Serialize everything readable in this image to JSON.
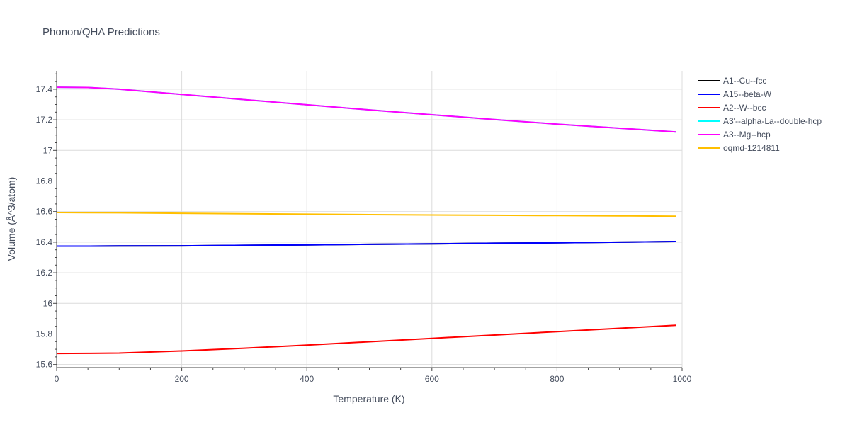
{
  "chart_data": {
    "type": "line",
    "title": "Phonon/QHA Predictions",
    "xlabel": "Temperature (K)",
    "ylabel": "Volume (Å^3/atom)",
    "xlim": [
      0,
      1000
    ],
    "ylim": [
      15.58,
      17.52
    ],
    "xticks": [
      0,
      200,
      400,
      600,
      800,
      1000
    ],
    "xtick_labels": [
      "0",
      "200",
      "400",
      "600",
      "800",
      "1000"
    ],
    "yticks": [
      15.6,
      15.8,
      16.0,
      16.2,
      16.4,
      16.6,
      16.8,
      17.0,
      17.2,
      17.4
    ],
    "ytick_labels": [
      "15.6",
      "15.8",
      "16",
      "16.2",
      "16.4",
      "16.6",
      "16.8",
      "17",
      "17.2",
      "17.4"
    ],
    "grid": true,
    "legend_position": "right",
    "series": [
      {
        "name": "A1--Cu--fcc",
        "color": "#000000",
        "x": [
          0,
          50,
          100,
          200,
          300,
          400,
          500,
          600,
          700,
          800,
          900,
          990
        ],
        "y": [
          16.374,
          16.374,
          16.375,
          16.376,
          16.379,
          16.382,
          16.386,
          16.389,
          16.393,
          16.396,
          16.4,
          16.404
        ]
      },
      {
        "name": "A15--beta-W",
        "color": "#0000ff",
        "x": [
          0,
          50,
          100,
          200,
          300,
          400,
          500,
          600,
          700,
          800,
          900,
          990
        ],
        "y": [
          16.374,
          16.374,
          16.375,
          16.376,
          16.379,
          16.382,
          16.386,
          16.389,
          16.393,
          16.396,
          16.4,
          16.404
        ]
      },
      {
        "name": "A2--W--bcc",
        "color": "#ff0000",
        "x": [
          0,
          50,
          100,
          200,
          300,
          400,
          500,
          600,
          700,
          800,
          900,
          990
        ],
        "y": [
          15.672,
          15.673,
          15.675,
          15.689,
          15.707,
          15.727,
          15.749,
          15.771,
          15.793,
          15.815,
          15.837,
          15.857
        ]
      },
      {
        "name": "A3'--alpha-La--double-hcp",
        "color": "#00ffff",
        "x": [
          0,
          50,
          100,
          200,
          300,
          400,
          500,
          600,
          700,
          800,
          900,
          990
        ],
        "y": [
          17.413,
          17.411,
          17.4,
          17.366,
          17.332,
          17.298,
          17.265,
          17.233,
          17.202,
          17.172,
          17.145,
          17.121
        ]
      },
      {
        "name": "A3--Mg--hcp",
        "color": "#ff00ff",
        "x": [
          0,
          50,
          100,
          200,
          300,
          400,
          500,
          600,
          700,
          800,
          900,
          990
        ],
        "y": [
          17.413,
          17.411,
          17.4,
          17.366,
          17.332,
          17.298,
          17.265,
          17.233,
          17.202,
          17.172,
          17.145,
          17.121
        ]
      },
      {
        "name": "oqmd-1214811",
        "color": "#ffbf00",
        "x": [
          0,
          50,
          100,
          200,
          300,
          400,
          500,
          600,
          700,
          800,
          900,
          990
        ],
        "y": [
          16.594,
          16.593,
          16.592,
          16.589,
          16.586,
          16.583,
          16.58,
          16.578,
          16.576,
          16.574,
          16.572,
          16.57
        ]
      }
    ]
  }
}
